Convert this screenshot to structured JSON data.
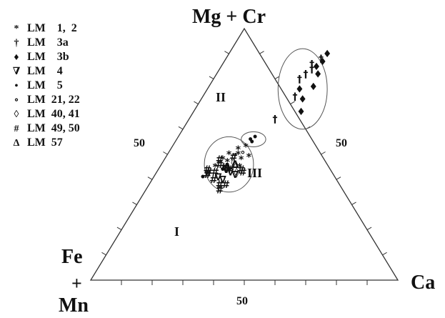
{
  "chart_data": {
    "type": "ternary",
    "vertices": {
      "top": "Mg + Cr",
      "left_line1": "Fe",
      "left_line2": "+",
      "left_line3": "Mn",
      "right": "Ca"
    },
    "tick_labels": {
      "left_edge": "50",
      "right_edge": "50",
      "bottom_edge": "50"
    },
    "field_labels": {
      "I": "I",
      "II": "II",
      "III": "III"
    },
    "legend": [
      {
        "symbol": "*",
        "label": "LM    1,  2"
      },
      {
        "symbol": "†",
        "label": "LM    3a"
      },
      {
        "symbol": "♦",
        "label": "LM    3b"
      },
      {
        "symbol": "∇",
        "label": "LM    4"
      },
      {
        "symbol": "•",
        "label": "LM    5"
      },
      {
        "symbol": "∘",
        "label": "LM  21, 22"
      },
      {
        "symbol": "◊",
        "label": "LM  40, 41"
      },
      {
        "symbol": "#",
        "label": "LM  49, 50"
      },
      {
        "symbol": "Δ",
        "label": "LM  57"
      }
    ],
    "fields": [
      {
        "name": "I",
        "center": [
          22,
          46
        ],
        "rx": 8,
        "ry": 11
      },
      {
        "name": "II",
        "center": [
          25,
          56
        ],
        "rx": 4,
        "ry": 3
      },
      {
        "name": "III",
        "center": [
          31,
          76
        ],
        "rx": 8,
        "ry": 16
      }
    ],
    "series": [
      {
        "symbol": "*",
        "points": [
          [
            19,
            48
          ],
          [
            21,
            47
          ],
          [
            23,
            50
          ],
          [
            25,
            48
          ],
          [
            20,
            50
          ],
          [
            24,
            53
          ],
          [
            26,
            45
          ],
          [
            18,
            45
          ],
          [
            22,
            52
          ],
          [
            27,
            49
          ]
        ]
      },
      {
        "symbol": "†",
        "points": [
          [
            31,
            88
          ],
          [
            29,
            82
          ],
          [
            28,
            80
          ],
          [
            30,
            73
          ],
          [
            28,
            64
          ],
          [
            29,
            86
          ],
          [
            30,
            84
          ]
        ]
      },
      {
        "symbol": "♦",
        "points": [
          [
            31,
            85
          ],
          [
            32,
            87
          ],
          [
            33,
            82
          ],
          [
            34,
            77
          ],
          [
            35,
            67
          ],
          [
            30,
            76
          ],
          [
            33,
            72
          ],
          [
            32,
            90
          ]
        ]
      },
      {
        "symbol": "∇",
        "points": [
          [
            21,
            41
          ],
          [
            23,
            40
          ],
          [
            24,
            43
          ],
          [
            26,
            42
          ],
          [
            22,
            44
          ]
        ]
      },
      {
        "symbol": "•",
        "points": [
          [
            24,
            56
          ],
          [
            25,
            57
          ],
          [
            25,
            55
          ],
          [
            16,
            41
          ],
          [
            21,
            44
          ]
        ]
      },
      {
        "symbol": "∘",
        "points": [
          [
            24,
            51
          ],
          [
            22,
            50
          ]
        ]
      },
      {
        "symbol": "◊",
        "points": [
          [
            26,
            43
          ],
          [
            23,
            47
          ]
        ]
      },
      {
        "symbol": "#",
        "points": [
          [
            18,
            48
          ],
          [
            16,
            44
          ],
          [
            17,
            43
          ],
          [
            19,
            46
          ],
          [
            21,
            45
          ],
          [
            19,
            43
          ],
          [
            23,
            38
          ],
          [
            24,
            36
          ],
          [
            25,
            38
          ],
          [
            27,
            44
          ],
          [
            28,
            43
          ],
          [
            22,
            49
          ],
          [
            17,
            42
          ],
          [
            23,
            44
          ],
          [
            20,
            40
          ]
        ]
      },
      {
        "symbol": "Δ",
        "points": [
          [
            22,
            45
          ],
          [
            24,
            46
          ]
        ]
      }
    ],
    "colors": {
      "line": "#333333",
      "marker": "#111111",
      "field": "#555555"
    }
  }
}
